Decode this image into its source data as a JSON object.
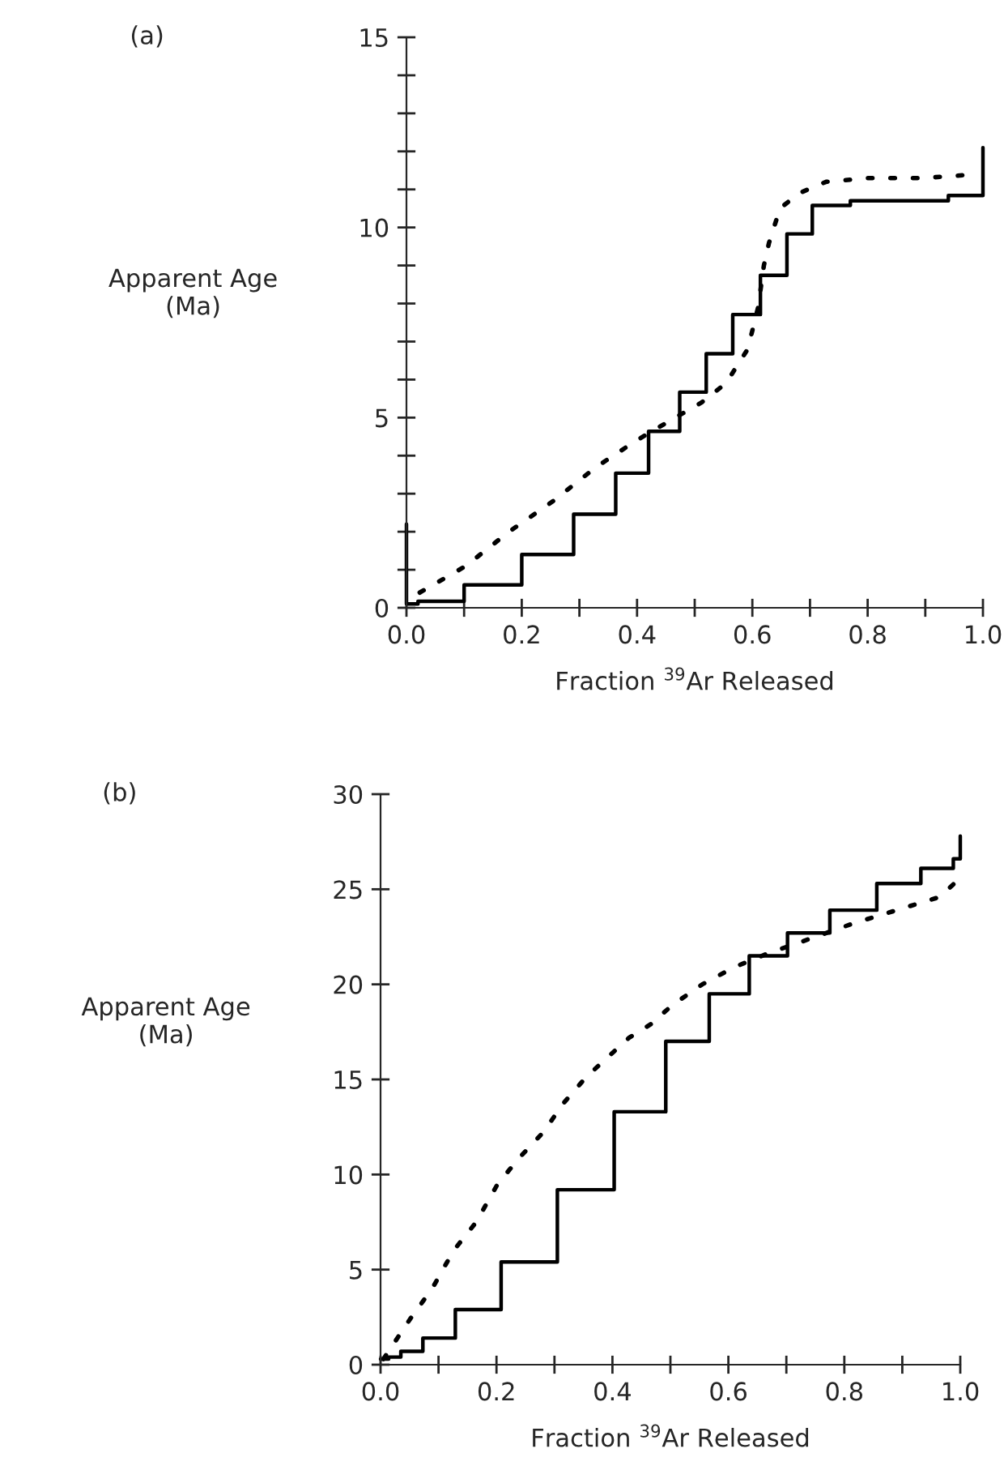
{
  "chart_data": [
    {
      "type": "step",
      "xlabel": "Fraction $^{39}$Ar Released",
      "ylabel": "Apparent Age\n(Ma)",
      "annotations": [
        "(a)"
      ],
      "xlim": [
        0,
        1.0
      ],
      "ylim": [
        0,
        15
      ],
      "grid": false,
      "legend": false,
      "xticks": [
        {
          "value": 0,
          "label": "0.0"
        },
        {
          "value": 0.1,
          "label": null
        },
        {
          "value": 0.2,
          "label": "0.2"
        },
        {
          "value": 0.3,
          "label": null
        },
        {
          "value": 0.4,
          "label": "0.4"
        },
        {
          "value": 0.5,
          "label": null
        },
        {
          "value": 0.6,
          "label": "0.6"
        },
        {
          "value": 0.7,
          "label": null
        },
        {
          "value": 0.8,
          "label": "0.8"
        },
        {
          "value": 0.9,
          "label": null
        },
        {
          "value": 1.0,
          "label": "1.0"
        }
      ],
      "yticks": [
        0,
        {
          "value": 1,
          "label": null
        },
        {
          "value": 2,
          "label": null
        },
        {
          "value": 3,
          "label": null
        },
        {
          "value": 4,
          "label": null
        },
        5,
        {
          "value": 6,
          "label": null
        },
        {
          "value": 7,
          "label": null
        },
        {
          "value": 8,
          "label": null
        },
        {
          "value": 9,
          "label": null
        },
        10,
        {
          "value": 11,
          "label": null
        },
        {
          "value": 12,
          "label": null
        },
        {
          "value": 13,
          "label": null
        },
        {
          "value": 14,
          "label": null
        },
        15
      ],
      "series": [
        {
          "color": "#000000",
          "line_style": "solid",
          "x": [
            0,
            0,
            0.02,
            0.1,
            0.2,
            0.29,
            0.363,
            0.42,
            0.474,
            0.52,
            0.566,
            0.614,
            0.66,
            0.704,
            0.77,
            0.94,
            1.0
          ],
          "values": [
            2.2,
            0.1,
            0.17,
            0.6,
            1.4,
            2.46,
            3.54,
            4.64,
            5.67,
            6.68,
            7.71,
            8.74,
            9.83,
            10.58,
            10.7,
            10.84,
            12.1
          ]
        },
        {
          "type": "line",
          "color": "#000000",
          "line_style": "dotted",
          "x": [
            0.023,
            0.103,
            0.178,
            0.254,
            0.329,
            0.399,
            0.455,
            0.512,
            0.554,
            0.592,
            0.61,
            0.62,
            0.629,
            0.648,
            0.681,
            0.728,
            0.803,
            0.897,
            0.991
          ],
          "values": [
            0.4,
            1.1,
            2.0,
            2.8,
            3.7,
            4.4,
            4.9,
            5.4,
            5.9,
            6.8,
            7.9,
            9.0,
            9.6,
            10.5,
            10.9,
            11.2,
            11.3,
            11.3,
            11.4
          ]
        }
      ]
    },
    {
      "type": "step",
      "xlabel": "Fraction $^{39}$Ar Released",
      "ylabel": "Apparent Age\n(Ma)",
      "annotations": [
        "(b)"
      ],
      "xlim": [
        0,
        1.0
      ],
      "ylim": [
        0,
        30
      ],
      "grid": false,
      "legend": false,
      "xticks": [
        {
          "value": 0,
          "label": "0.0"
        },
        {
          "value": 0.1,
          "label": null
        },
        {
          "value": 0.2,
          "label": "0.2"
        },
        {
          "value": 0.3,
          "label": null
        },
        {
          "value": 0.4,
          "label": "0.4"
        },
        {
          "value": 0.5,
          "label": null
        },
        {
          "value": 0.6,
          "label": "0.6"
        },
        {
          "value": 0.7,
          "label": null
        },
        {
          "value": 0.8,
          "label": "0.8"
        },
        {
          "value": 0.9,
          "label": null
        },
        {
          "value": 1.0,
          "label": "1.0"
        }
      ],
      "yticks": [
        0,
        5,
        10,
        15,
        20,
        25,
        30
      ],
      "series": [
        {
          "color": "#000000",
          "line_style": "solid",
          "x": [
            0,
            0.014,
            0.035,
            0.073,
            0.129,
            0.208,
            0.305,
            0.403,
            0.492,
            0.567,
            0.636,
            0.702,
            0.775,
            0.856,
            0.932,
            0.988,
            1.0
          ],
          "values": [
            0.3,
            0.4,
            0.7,
            1.4,
            2.9,
            5.4,
            9.2,
            13.3,
            17.0,
            19.5,
            21.5,
            22.7,
            23.9,
            25.3,
            26.1,
            26.6,
            27.8
          ]
        },
        {
          "type": "line",
          "color": "#000000",
          "line_style": "dotted",
          "x": [
            0.005,
            0.051,
            0.089,
            0.126,
            0.165,
            0.202,
            0.24,
            0.28,
            0.317,
            0.354,
            0.393,
            0.429,
            0.466,
            0.503,
            0.555,
            0.61,
            0.666,
            0.741,
            0.815,
            0.89,
            0.965,
            1.0
          ],
          "values": [
            0.3,
            2.4,
            4.0,
            6.0,
            7.5,
            9.5,
            10.9,
            12.2,
            13.8,
            15.1,
            16.2,
            17.2,
            17.9,
            18.9,
            20.0,
            20.9,
            21.6,
            22.4,
            23.2,
            23.9,
            24.6,
            25.6
          ]
        }
      ]
    }
  ]
}
